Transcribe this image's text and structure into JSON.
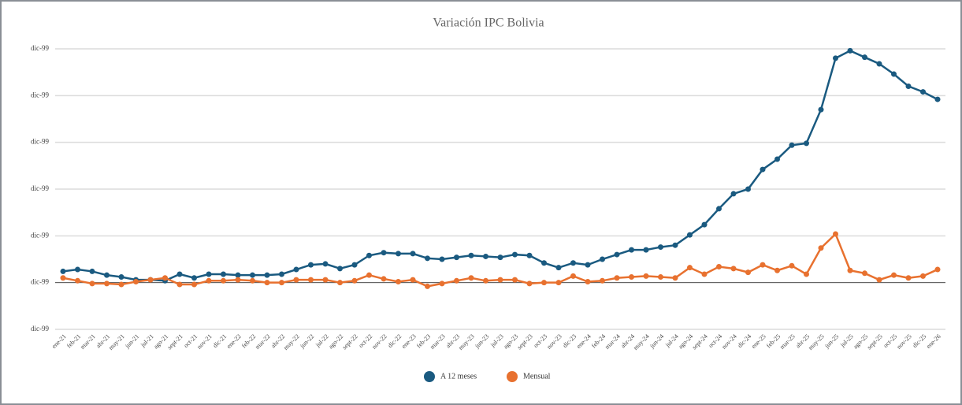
{
  "chart_data": {
    "type": "line",
    "title": "Variación IPC Bolivia",
    "categories": [
      "ene-21",
      "feb-21",
      "mar-21",
      "abr-21",
      "may-21",
      "jun-21",
      "jul-21",
      "ago-21",
      "sept-21",
      "oct-21",
      "nov-21",
      "dic-21",
      "ene-22",
      "feb-22",
      "mar-22",
      "abr-22",
      "may-22",
      "jun-22",
      "jul-22",
      "ago-22",
      "sept-22",
      "oct-22",
      "nov-22",
      "dic-22",
      "ene-23",
      "feb-23",
      "mar-23",
      "abr-23",
      "may-23",
      "jun-23",
      "jul-23",
      "ago-23",
      "sept-23",
      "oct-23",
      "nov-23",
      "dic-23",
      "ene-24",
      "feb-24",
      "mar-24",
      "abr-24",
      "may-24",
      "jun-24",
      "jul-24",
      "ago-24",
      "sept-24",
      "oct-24",
      "nov-24",
      "dic-24",
      "ene-25",
      "feb-25",
      "mar-25",
      "abr-25",
      "may-25",
      "jun-25",
      "jul-25",
      "ago-25",
      "sept-25",
      "oct-25",
      "nov-25",
      "dic-25",
      "ene-26"
    ],
    "series": [
      {
        "name": "A 12 meses",
        "color": "#1a5a80",
        "values": [
          1.2,
          1.4,
          1.2,
          0.8,
          0.6,
          0.3,
          0.3,
          0.2,
          0.9,
          0.5,
          0.9,
          0.9,
          0.8,
          0.8,
          0.8,
          0.9,
          1.4,
          1.9,
          2.0,
          1.5,
          1.9,
          2.9,
          3.2,
          3.1,
          3.1,
          2.6,
          2.5,
          2.7,
          2.9,
          2.8,
          2.7,
          3.0,
          2.9,
          2.1,
          1.6,
          2.1,
          1.9,
          2.5,
          3.0,
          3.5,
          3.5,
          3.8,
          4.0,
          5.1,
          6.2,
          7.9,
          9.5,
          10.0,
          12.1,
          13.2,
          14.7,
          14.9,
          18.5,
          24.0,
          24.8,
          24.1,
          23.4,
          22.3,
          21.0,
          20.4,
          19.6
        ]
      },
      {
        "name": "Mensual",
        "color": "#e8712f",
        "values": [
          0.5,
          0.2,
          -0.1,
          -0.1,
          -0.2,
          0.1,
          0.3,
          0.5,
          -0.2,
          -0.2,
          0.2,
          0.2,
          0.3,
          0.2,
          0,
          0,
          0.3,
          0.3,
          0.3,
          0,
          0.2,
          0.8,
          0.4,
          0.1,
          0.3,
          -0.4,
          -0.1,
          0.2,
          0.5,
          0.2,
          0.3,
          0.3,
          -0.1,
          0,
          0,
          0.7,
          0.1,
          0.2,
          0.5,
          0.6,
          0.7,
          0.6,
          0.5,
          1.6,
          0.9,
          1.7,
          1.5,
          1.1,
          1.9,
          1.3,
          1.8,
          0.9,
          3.7,
          5.2,
          1.3,
          1.0,
          0.3,
          0.8,
          0.5,
          0.7,
          1.4
        ]
      }
    ],
    "ylim": [
      -5,
      25
    ],
    "yticks": [
      {
        "value": -5,
        "label": "dic-99"
      },
      {
        "value": 0,
        "label": "dic-99"
      },
      {
        "value": 5,
        "label": "dic-99"
      },
      {
        "value": 10,
        "label": "dic-99"
      },
      {
        "value": 15,
        "label": "dic-99"
      },
      {
        "value": 20,
        "label": "dic-99"
      },
      {
        "value": 25,
        "label": "dic-99"
      }
    ],
    "grid": true
  }
}
